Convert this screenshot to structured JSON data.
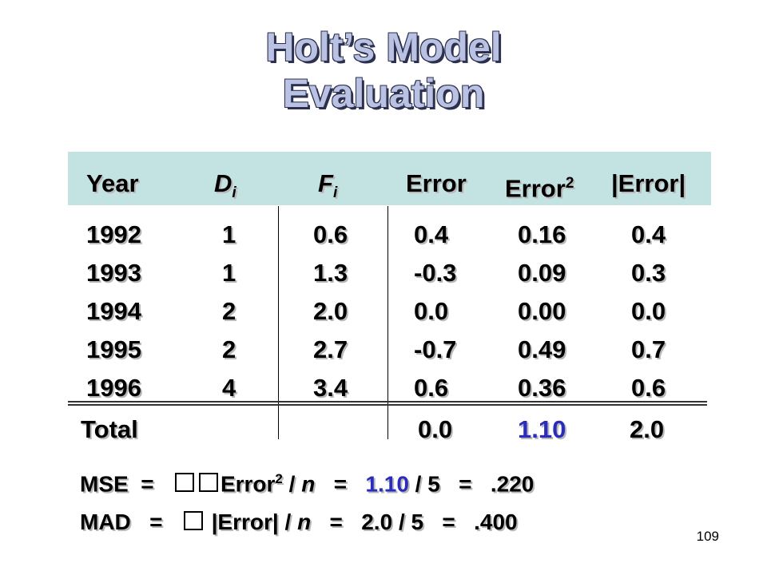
{
  "title": {
    "line1": "Holt’s Model",
    "line2": "Evaluation"
  },
  "table": {
    "headers": {
      "year": "Year",
      "d": {
        "base": "D",
        "sub": "i"
      },
      "f": {
        "base": "F",
        "sub": "i"
      },
      "error": "Error",
      "error2": {
        "base": "Error",
        "sup": "2"
      },
      "abs": "|Error|"
    },
    "rows": [
      {
        "year": "1992",
        "d": "1",
        "f": "0.6",
        "error": "0.4",
        "error2": "0.16",
        "abs": "0.4"
      },
      {
        "year": "1993",
        "d": "1",
        "f": "1.3",
        "error": "-0.3",
        "error2": "0.09",
        "abs": "0.3"
      },
      {
        "year": "1994",
        "d": "2",
        "f": "2.0",
        "error": "0.0",
        "error2": "0.00",
        "abs": "0.0"
      },
      {
        "year": "1995",
        "d": "2",
        "f": "2.7",
        "error": "-0.7",
        "error2": "0.49",
        "abs": "0.7"
      },
      {
        "year": "1996",
        "d": "4",
        "f": "3.4",
        "error": "0.6",
        "error2": "0.36",
        "abs": "0.6"
      }
    ],
    "total": {
      "label": "Total",
      "error": "0.0",
      "error2": "1.10",
      "abs": "2.0"
    }
  },
  "mse": {
    "label": "MSE",
    "eq1": "=",
    "term": "Error",
    "sup": "2",
    "div": "/",
    "n": "n",
    "eq2": "=",
    "value": "1.10",
    "div2": "/ 5",
    "eq3": "=",
    "result": ".220"
  },
  "mad": {
    "label": "MAD",
    "eq1": "=",
    "term": "|Error|",
    "div": "/",
    "n": "n",
    "eq2": "=",
    "value": "2.0 / 5",
    "eq3": "=",
    "result": ".400"
  },
  "page_number": "109",
  "colors": {
    "title": "#b9c2e2",
    "header_band": "#c3e2e2",
    "highlight": "#2b2bbd"
  }
}
